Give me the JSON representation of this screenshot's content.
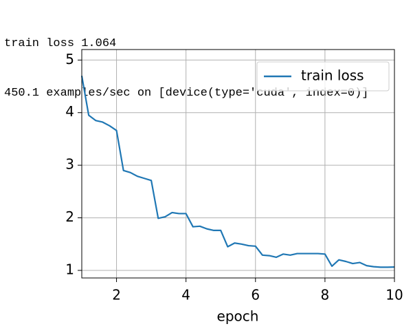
{
  "console": {
    "lines": [
      "train loss 1.064",
      "450.1 examples/sec on [device(type='cuda', index=0)]"
    ]
  },
  "chart_data": {
    "type": "line",
    "xlabel": "epoch",
    "x": [
      1.0,
      1.2,
      1.4,
      1.6,
      1.8,
      2.0,
      2.2,
      2.4,
      2.6,
      2.8,
      3.0,
      3.2,
      3.4,
      3.6,
      3.8,
      4.0,
      4.2,
      4.4,
      4.6,
      4.8,
      5.0,
      5.2,
      5.4,
      5.6,
      5.8,
      6.0,
      6.2,
      6.4,
      6.6,
      6.8,
      7.0,
      7.2,
      7.4,
      7.6,
      7.8,
      8.0,
      8.2,
      8.4,
      8.6,
      8.8,
      9.0,
      9.2,
      9.4,
      9.6,
      9.8,
      10.0
    ],
    "series": [
      {
        "name": "train loss",
        "color": "#1f77b4",
        "values": [
          4.7,
          3.95,
          3.85,
          3.82,
          3.75,
          3.66,
          2.9,
          2.86,
          2.79,
          2.75,
          2.71,
          1.99,
          2.02,
          2.1,
          2.08,
          2.08,
          1.83,
          1.84,
          1.79,
          1.76,
          1.76,
          1.45,
          1.52,
          1.5,
          1.47,
          1.46,
          1.29,
          1.28,
          1.25,
          1.31,
          1.29,
          1.32,
          1.32,
          1.32,
          1.32,
          1.31,
          1.08,
          1.2,
          1.17,
          1.13,
          1.15,
          1.09,
          1.07,
          1.06,
          1.06,
          1.064
        ]
      }
    ],
    "xlim": [
      1,
      10
    ],
    "xticks": [
      2,
      4,
      6,
      8,
      10
    ],
    "ylim": [
      0.856,
      5.2
    ],
    "yticks": [
      1,
      2,
      3,
      4,
      5
    ],
    "grid": true,
    "legend": "upper right"
  }
}
